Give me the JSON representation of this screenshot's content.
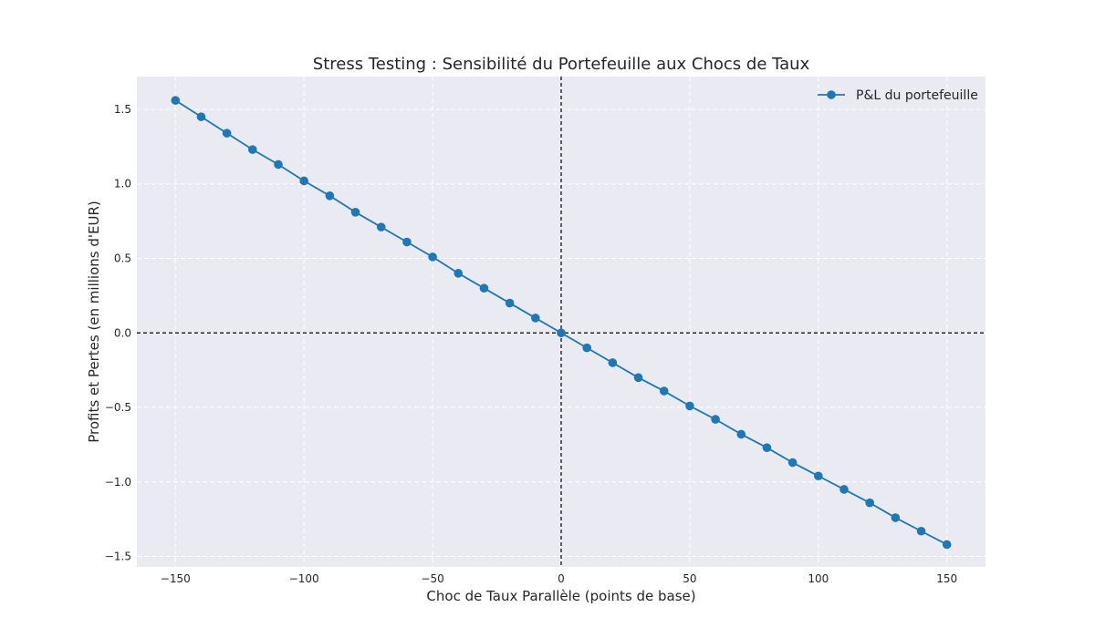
{
  "chart_data": {
    "type": "line",
    "title": "Stress Testing : Sensibilité du Portefeuille aux Chocs de Taux",
    "xlabel": "Choc de Taux Parallèle (points de base)",
    "ylabel": "Profits et Pertes (en millions d'EUR)",
    "xlim": [
      -165,
      165
    ],
    "ylim": [
      -1.57,
      1.72
    ],
    "xticks": [
      -150,
      -100,
      -50,
      0,
      50,
      100,
      150
    ],
    "xtick_labels": [
      "−150",
      "−100",
      "−50",
      "0",
      "50",
      "100",
      "150"
    ],
    "yticks": [
      -1.5,
      -1.0,
      -0.5,
      0.0,
      0.5,
      1.0,
      1.5
    ],
    "ytick_labels": [
      "−1.5",
      "−1.0",
      "−0.5",
      "0.0",
      "0.5",
      "1.0",
      "1.5"
    ],
    "grid": true,
    "legend_position": "top-right",
    "reference_lines": {
      "x": 0,
      "y": 0,
      "style": "dashed"
    },
    "series": [
      {
        "name": "P&L du portefeuille",
        "color": "#1f77b4",
        "marker": "circle",
        "x": [
          -150,
          -140,
          -130,
          -120,
          -110,
          -100,
          -90,
          -80,
          -70,
          -60,
          -50,
          -40,
          -30,
          -20,
          -10,
          0,
          10,
          20,
          30,
          40,
          50,
          60,
          70,
          80,
          90,
          100,
          110,
          120,
          130,
          140,
          150
        ],
        "y": [
          1.56,
          1.45,
          1.34,
          1.23,
          1.13,
          1.02,
          0.92,
          0.81,
          0.71,
          0.61,
          0.51,
          0.4,
          0.3,
          0.2,
          0.1,
          0.0,
          -0.1,
          -0.2,
          -0.3,
          -0.39,
          -0.49,
          -0.58,
          -0.68,
          -0.77,
          -0.87,
          -0.96,
          -1.05,
          -1.14,
          -1.24,
          -1.33,
          -1.42
        ]
      }
    ]
  }
}
